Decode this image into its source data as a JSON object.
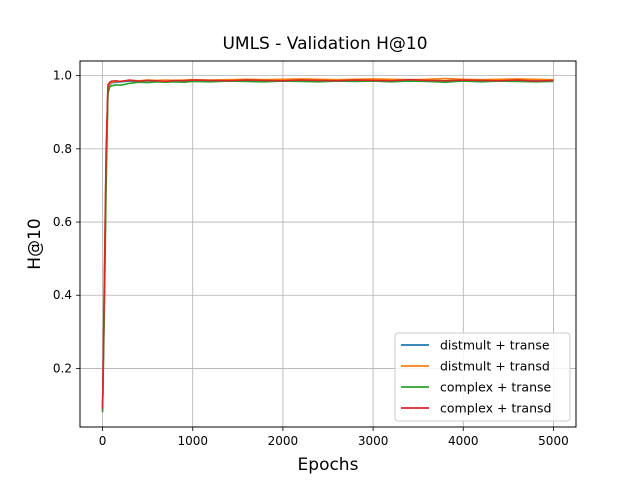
{
  "chart_data": {
    "type": "line",
    "title": "UMLS - Validation H@10",
    "xlabel": "Epochs",
    "ylabel": "H@10",
    "xlim": [
      -250,
      5250
    ],
    "ylim": [
      0.04,
      1.04
    ],
    "xticks": [
      0,
      1000,
      2000,
      3000,
      4000,
      5000
    ],
    "yticks": [
      0.2,
      0.4,
      0.6,
      0.8,
      1.0
    ],
    "grid": true,
    "legend_position": "lower-right",
    "series": [
      {
        "name": "distmult + transe",
        "color": "#1f77b4",
        "x": [
          0,
          20,
          40,
          60,
          80,
          100,
          150,
          200,
          300,
          400,
          500,
          600,
          700,
          800,
          900,
          1000,
          1200,
          1400,
          1600,
          1800,
          2000,
          2200,
          2400,
          2600,
          2800,
          3000,
          3200,
          3400,
          3600,
          3800,
          4000,
          4200,
          4400,
          4600,
          4800,
          5000
        ],
        "y": [
          0.085,
          0.4,
          0.75,
          0.96,
          0.975,
          0.98,
          0.982,
          0.983,
          0.985,
          0.984,
          0.986,
          0.985,
          0.986,
          0.985,
          0.986,
          0.987,
          0.986,
          0.987,
          0.986,
          0.987,
          0.988,
          0.987,
          0.986,
          0.988,
          0.987,
          0.986,
          0.987,
          0.988,
          0.987,
          0.986,
          0.987,
          0.986,
          0.987,
          0.988,
          0.987,
          0.986
        ]
      },
      {
        "name": "distmult + transd",
        "color": "#ff7f0e",
        "x": [
          0,
          20,
          40,
          60,
          80,
          100,
          150,
          200,
          300,
          400,
          500,
          600,
          700,
          800,
          900,
          1000,
          1200,
          1400,
          1600,
          1800,
          2000,
          2200,
          2400,
          2600,
          2800,
          3000,
          3200,
          3400,
          3600,
          3800,
          4000,
          4200,
          4400,
          4600,
          4800,
          5000
        ],
        "y": [
          0.09,
          0.42,
          0.78,
          0.97,
          0.978,
          0.982,
          0.984,
          0.985,
          0.987,
          0.986,
          0.988,
          0.987,
          0.988,
          0.987,
          0.988,
          0.989,
          0.988,
          0.989,
          0.99,
          0.989,
          0.99,
          0.991,
          0.99,
          0.989,
          0.99,
          0.991,
          0.99,
          0.989,
          0.99,
          0.992,
          0.99,
          0.989,
          0.99,
          0.991,
          0.99,
          0.989
        ]
      },
      {
        "name": "complex + transe",
        "color": "#2ca02c",
        "x": [
          0,
          20,
          40,
          60,
          80,
          100,
          150,
          200,
          300,
          400,
          500,
          600,
          700,
          800,
          900,
          1000,
          1200,
          1400,
          1600,
          1800,
          2000,
          2200,
          2400,
          2600,
          2800,
          3000,
          3200,
          3400,
          3600,
          3800,
          4000,
          4200,
          4400,
          4600,
          4800,
          5000
        ],
        "y": [
          0.08,
          0.35,
          0.7,
          0.95,
          0.97,
          0.972,
          0.975,
          0.974,
          0.979,
          0.982,
          0.981,
          0.983,
          0.982,
          0.983,
          0.982,
          0.984,
          0.983,
          0.985,
          0.984,
          0.983,
          0.985,
          0.984,
          0.983,
          0.985,
          0.984,
          0.985,
          0.983,
          0.985,
          0.984,
          0.982,
          0.985,
          0.983,
          0.985,
          0.984,
          0.983,
          0.984
        ]
      },
      {
        "name": "complex + transd",
        "color": "#d62728",
        "x": [
          0,
          20,
          40,
          60,
          80,
          100,
          150,
          200,
          300,
          400,
          500,
          600,
          700,
          800,
          900,
          1000,
          1200,
          1400,
          1600,
          1800,
          2000,
          2200,
          2400,
          2600,
          2800,
          3000,
          3200,
          3400,
          3600,
          3800,
          4000,
          4200,
          4400,
          4600,
          4800,
          5000
        ],
        "y": [
          0.09,
          0.45,
          0.8,
          0.975,
          0.982,
          0.985,
          0.986,
          0.984,
          0.988,
          0.985,
          0.987,
          0.986,
          0.984,
          0.987,
          0.986,
          0.988,
          0.987,
          0.986,
          0.988,
          0.987,
          0.986,
          0.988,
          0.987,
          0.986,
          0.988,
          0.987,
          0.986,
          0.989,
          0.987,
          0.986,
          0.988,
          0.987,
          0.986,
          0.988,
          0.985,
          0.987
        ]
      }
    ]
  }
}
